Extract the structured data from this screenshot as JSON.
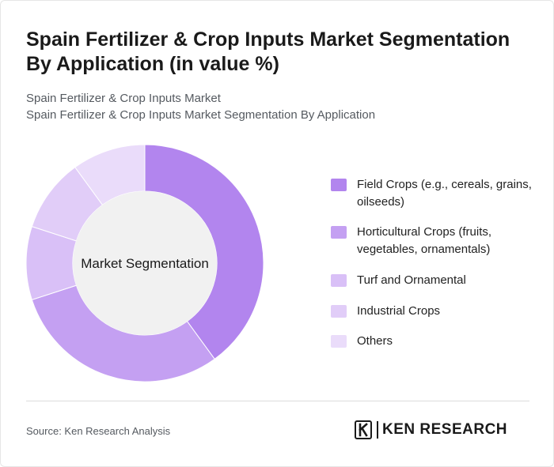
{
  "header": {
    "title": "Spain Fertilizer & Crop Inputs Market Segmentation By Application (in value %)",
    "subtitle_line1": "Spain Fertilizer & Crop Inputs Market",
    "subtitle_line2": "Spain Fertilizer & Crop Inputs Market Segmentation By Application"
  },
  "chart_data": {
    "type": "pie",
    "center_label": "Market Segmentation",
    "legend_position": "right",
    "categories": [
      "Field Crops (e.g., cereals, grains, oilseeds)",
      "Horticultural Crops (fruits, vegetables, ornamentals)",
      "Turf and Ornamental",
      "Industrial Crops",
      "Others"
    ],
    "values": [
      40,
      30,
      10,
      10,
      10
    ],
    "colors": [
      "#b285ee",
      "#c4a0f2",
      "#d9c0f7",
      "#e1cdf8",
      "#eadcfa"
    ]
  },
  "footer": {
    "source": "Source: Ken Research Analysis",
    "brand": "KEN RESEARCH",
    "brand_mark": "K"
  }
}
